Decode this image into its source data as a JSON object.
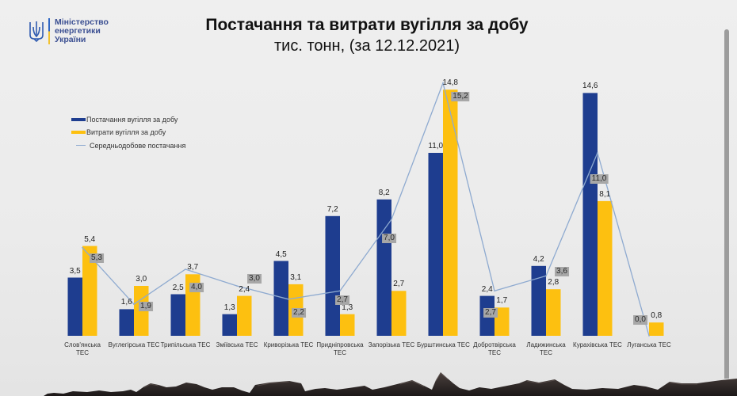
{
  "header": {
    "ministry_name": [
      "Міністерство",
      "енергетики",
      "України"
    ]
  },
  "colors": {
    "supply": "#1e3d8f",
    "consumption": "#fdc010",
    "average_line": "#8eaad0",
    "average_label_bg": "#a7a7a7"
  },
  "chart_data": {
    "type": "bar",
    "title": "Постачання та витрати вугілля за добу",
    "subtitle": "тис. тонн, (за 12.12.2021)",
    "xlabel": "",
    "ylabel": "",
    "ylim": [
      0,
      16
    ],
    "grid": false,
    "legend": "top-left",
    "categories": [
      "Слов'янська ТЕС",
      "Вуглегірська ТЕС",
      "Трипільська ТЕС",
      "Зміївська ТЕС",
      "Криворізька ТЕС",
      "Придніпровська ТЕС",
      "Запорізька ТЕС",
      "Бурштинська ТЕС",
      "Добротвірська ТЕС",
      "Ладижинська ТЕС",
      "Курахівська ТЕС",
      "Луганська ТЕС"
    ],
    "series": [
      {
        "name": "Постачання вугілля за добу",
        "type": "bar",
        "color": "#1e3d8f",
        "values": [
          3.5,
          1.6,
          2.5,
          1.3,
          4.5,
          7.2,
          8.2,
          11.0,
          2.4,
          4.2,
          14.6,
          0
        ],
        "labels": [
          "3,5",
          "1,6",
          "2,5",
          "1,3",
          "4,5",
          "7,2",
          "8,2",
          "11,0",
          "2,4",
          "4,2",
          "14,6",
          ""
        ]
      },
      {
        "name": "Витрати вугілля за добу",
        "type": "bar",
        "color": "#fdc010",
        "values": [
          5.4,
          3.0,
          3.7,
          2.4,
          3.1,
          1.3,
          2.7,
          14.8,
          1.7,
          2.8,
          8.1,
          0.8
        ],
        "labels": [
          "5,4",
          "3,0",
          "3,7",
          "2,4",
          "3,1",
          "1,3",
          "2,7",
          "14,8",
          "1,7",
          "2,8",
          "8,1",
          "0,8"
        ]
      },
      {
        "name": "Середньодобове постачання",
        "type": "line",
        "color": "#8eaad0",
        "values": [
          5.3,
          1.9,
          4.0,
          3.0,
          2.2,
          2.7,
          7.0,
          15.2,
          2.7,
          3.6,
          11.0,
          0.0
        ],
        "labels": [
          "5,3",
          "1,9",
          "4,0",
          "3,0",
          "2,2",
          "2,7",
          "7,0",
          "15,2",
          "2,7",
          "3,6",
          "11,0",
          "0,0"
        ]
      }
    ]
  }
}
